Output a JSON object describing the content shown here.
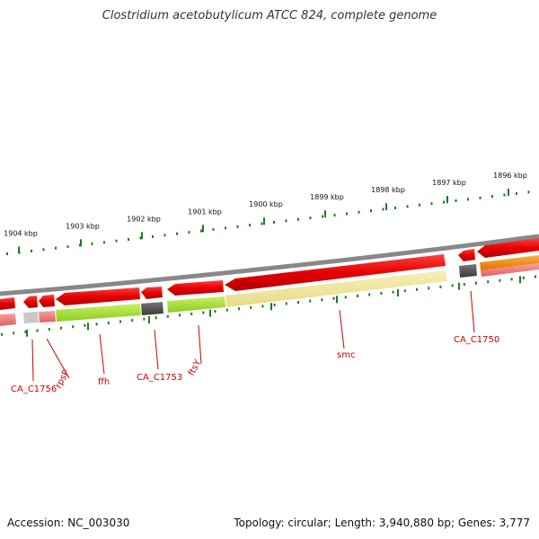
{
  "title": "Clostridium acetobutylicum ATCC 824, complete genome",
  "footer": {
    "accession": "Accession: NC_003030",
    "summary": "Topology: circular; Length: 3,940,880 bp; Genes: 3,777"
  },
  "ticks": [
    "1904 kbp",
    "1903 kbp",
    "1902 kbp",
    "1901 kbp",
    "1900 kbp",
    "1899 kbp",
    "1898 kbp",
    "1897 kbp",
    "1896 kbp"
  ],
  "genes": [
    "CA_C1756",
    "rpsP",
    "ffh",
    "CA_C1753",
    "ftsY",
    "smc",
    "CA_C1750"
  ],
  "colors": {
    "cds": "#e60000",
    "cds_light": "#f08080",
    "backbone": "#888888",
    "tick": "#1f7a1f",
    "ffh_band": "#a6e22e",
    "ftsy_band": "#b5f23a",
    "smc_band": "#f0e6a0",
    "dark_band": "#555555",
    "orange_band": "#ff8c00",
    "label": "#cc0000"
  }
}
